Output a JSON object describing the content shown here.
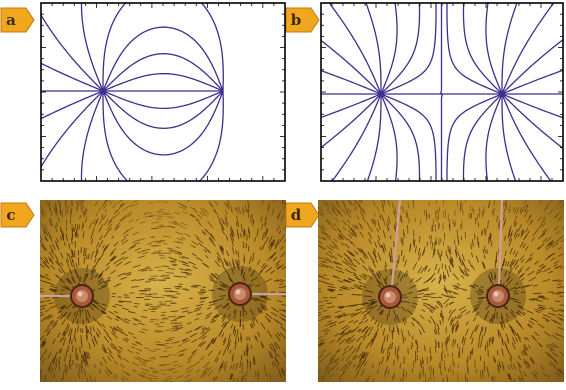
{
  "panels": [
    {
      "id": "a",
      "label": "a",
      "kind": "field-line-diagram",
      "charges": "opposite",
      "line_color": "#3f2d8f"
    },
    {
      "id": "b",
      "label": "b",
      "kind": "field-line-diagram",
      "charges": "like",
      "line_color": "#3f2d8f"
    },
    {
      "id": "c",
      "label": "c",
      "kind": "photograph",
      "subject": "two-electrodes-wires-horizontal"
    },
    {
      "id": "d",
      "label": "d",
      "kind": "photograph",
      "subject": "two-electrodes-wires-vertical"
    }
  ],
  "colors": {
    "tag_fill": "#f0a71e",
    "tag_edge": "#c07a10",
    "frame": "#000000",
    "photo_bg": "#b98a28",
    "copper": "#a8593a"
  }
}
